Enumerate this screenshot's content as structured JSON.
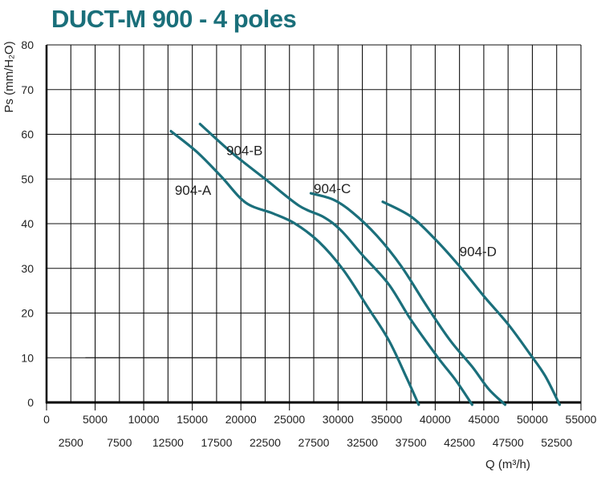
{
  "title": "DUCT-M  900 - 4 poles",
  "colors": {
    "title": "#1a6f7a",
    "curve": "#1b6f7b",
    "grid": "#111111"
  },
  "chart_data": {
    "type": "line",
    "title": "DUCT-M  900 - 4 poles",
    "xlabel": "Q (m³/h)",
    "ylabel": "Ps (mm/H₂O)",
    "xlim": [
      0,
      55000
    ],
    "ylim": [
      0,
      80
    ],
    "grid": true,
    "x_ticks_upper": [
      "0",
      "5000",
      "10000",
      "15000",
      "20000",
      "25000",
      "30000",
      "35000",
      "40000",
      "45000",
      "50000",
      "55000"
    ],
    "x_ticks_lower": [
      "2500",
      "7500",
      "12500",
      "17500",
      "22500",
      "27500",
      "32500",
      "37500",
      "42500",
      "47500",
      "52500"
    ],
    "y_ticks": [
      "0",
      "10",
      "20",
      "30",
      "40",
      "50",
      "60",
      "70",
      "80"
    ],
    "series": [
      {
        "name": "904-A",
        "label_at": [
          13200,
          46.5
        ],
        "points": [
          [
            12800,
            60.7
          ],
          [
            15500,
            56
          ],
          [
            18000,
            50.5
          ],
          [
            20500,
            44.7
          ],
          [
            23300,
            42.3
          ],
          [
            25500,
            40.1
          ],
          [
            28000,
            36
          ],
          [
            30500,
            29.8
          ],
          [
            33000,
            21.5
          ],
          [
            35200,
            14
          ],
          [
            37000,
            5.8
          ],
          [
            38300,
            -0.5
          ]
        ]
      },
      {
        "name": "904-B",
        "label_at": [
          18500,
          55.3
        ],
        "points": [
          [
            15800,
            62.3
          ],
          [
            19000,
            56
          ],
          [
            22500,
            50
          ],
          [
            26000,
            44
          ],
          [
            28500,
            41.5
          ],
          [
            30300,
            38.5
          ],
          [
            32500,
            33
          ],
          [
            35200,
            26.5
          ],
          [
            37500,
            18.5
          ],
          [
            40300,
            10
          ],
          [
            42100,
            5
          ],
          [
            43800,
            -0.5
          ]
        ]
      },
      {
        "name": "904-C",
        "label_at": [
          27500,
          46.8
        ],
        "points": [
          [
            27200,
            46.8
          ],
          [
            29500,
            45.4
          ],
          [
            31500,
            42.5
          ],
          [
            34000,
            37.3
          ],
          [
            36500,
            30.5
          ],
          [
            39000,
            22
          ],
          [
            41500,
            14
          ],
          [
            43800,
            8
          ],
          [
            45500,
            3
          ],
          [
            47200,
            -0.5
          ]
        ]
      },
      {
        "name": "904-D",
        "label_at": [
          42500,
          32.7
        ],
        "points": [
          [
            34600,
            44.9
          ],
          [
            37500,
            41.6
          ],
          [
            40000,
            36.5
          ],
          [
            42500,
            30.5
          ],
          [
            45000,
            23.8
          ],
          [
            47500,
            17.5
          ],
          [
            49700,
            11
          ],
          [
            51300,
            6
          ],
          [
            52800,
            -0.5
          ]
        ]
      }
    ],
    "reference_line": {
      "y": 10,
      "x_start": 4000
    }
  }
}
